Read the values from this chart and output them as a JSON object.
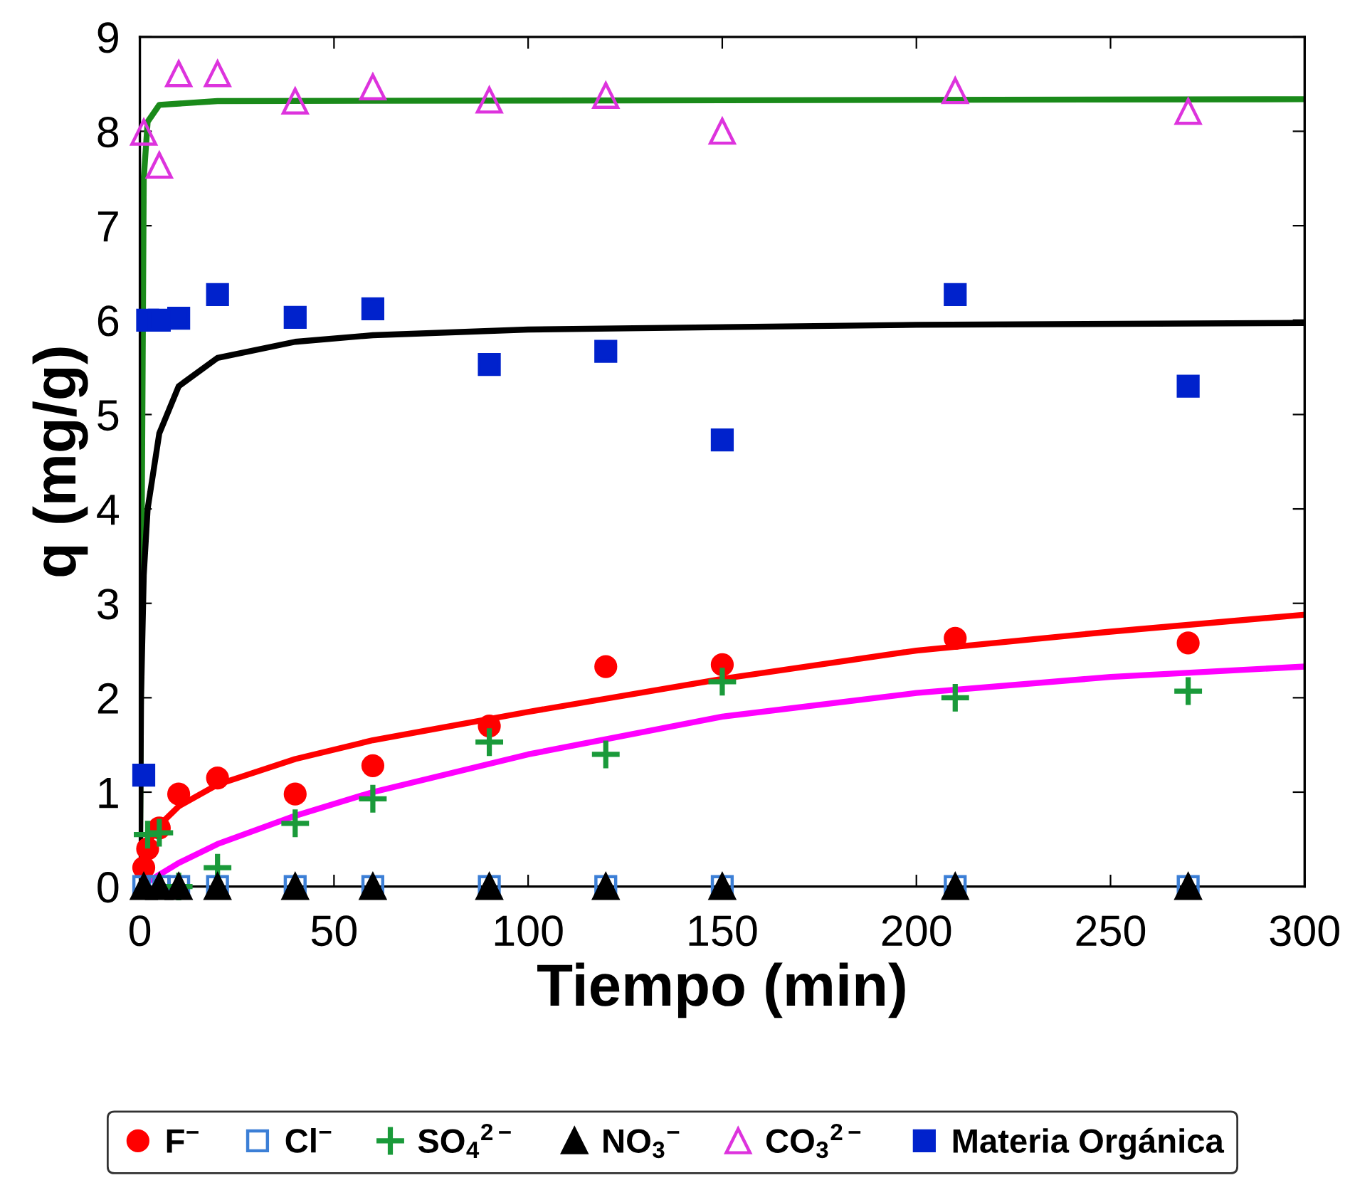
{
  "chart_data": {
    "type": "scatter",
    "xlabel": "Tiempo (min)",
    "ylabel": "q (mg/g)",
    "xlim": [
      0,
      300
    ],
    "ylim": [
      0,
      9
    ],
    "xticks": [
      0,
      50,
      100,
      150,
      200,
      250,
      300
    ],
    "yticks": [
      0,
      1,
      2,
      3,
      4,
      5,
      6,
      7,
      8,
      9
    ],
    "grid": false,
    "legend": "bottom",
    "series": [
      {
        "name": "F$^{−}$",
        "color": "#ff0000",
        "marker": "circle",
        "x": [
          1,
          2,
          5,
          10,
          20,
          40,
          60,
          90,
          120,
          150,
          210,
          270
        ],
        "values": [
          0.2,
          0.4,
          0.62,
          0.98,
          1.15,
          0.98,
          1.28,
          1.7,
          2.33,
          2.35,
          2.63,
          2.58
        ]
      },
      {
        "name": "Cl$^{−}$",
        "color": "#3c7fd6",
        "marker": "square_open",
        "x": [
          1,
          5,
          10,
          20,
          40,
          60,
          90,
          120,
          150,
          210,
          270
        ],
        "values": [
          0,
          0,
          0,
          0,
          0,
          0,
          0,
          0,
          0,
          0,
          0
        ]
      },
      {
        "name": "SO$_{4}$$^{2−}$",
        "color": "#1a9a3a",
        "marker": "cross",
        "x": [
          2,
          5,
          10,
          20,
          40,
          60,
          90,
          120,
          150,
          210,
          270
        ],
        "values": [
          0.55,
          0.57,
          0,
          0.2,
          0.67,
          0.93,
          1.53,
          1.4,
          2.17,
          2.0,
          2.07
        ]
      },
      {
        "name": "NO$_{3}$$^{−}$",
        "color": "#000000",
        "marker": "triangle",
        "x": [
          1,
          5,
          10,
          20,
          40,
          60,
          90,
          120,
          150,
          210,
          270
        ],
        "values": [
          0,
          0,
          0,
          0,
          0,
          0,
          0,
          0,
          0,
          0,
          0
        ]
      },
      {
        "name": "CO$_{3}$$^{2−}$",
        "color": "#dd33dd",
        "marker": "triangle_open",
        "x": [
          1,
          5,
          10,
          20,
          40,
          60,
          90,
          120,
          150,
          210,
          270
        ],
        "values": [
          7.99,
          7.64,
          8.61,
          8.61,
          8.32,
          8.47,
          8.33,
          8.38,
          8.0,
          8.43,
          8.21
        ]
      },
      {
        "name": "Materia Orgánica",
        "color": "#0022cc",
        "marker": "square",
        "x": [
          1,
          2,
          5,
          10,
          20,
          40,
          60,
          90,
          120,
          150,
          210,
          270
        ],
        "values": [
          1.18,
          6.0,
          6.0,
          6.02,
          6.27,
          6.03,
          6.12,
          5.53,
          5.67,
          4.73,
          6.27,
          5.3
        ]
      },
      {
        "type": "line",
        "color": "#1a8a1a",
        "x": [
          0,
          0.5,
          1,
          2,
          5,
          20,
          300
        ],
        "values": [
          0,
          4,
          7.5,
          8.1,
          8.28,
          8.32,
          8.34
        ]
      },
      {
        "type": "line",
        "color": "#000000",
        "x": [
          0,
          0.3,
          1,
          2,
          5,
          10,
          20,
          40,
          60,
          100,
          200,
          300
        ],
        "values": [
          0,
          2,
          3.3,
          4.0,
          4.8,
          5.3,
          5.6,
          5.77,
          5.84,
          5.9,
          5.95,
          5.97
        ]
      },
      {
        "type": "line",
        "color": "#ff0000",
        "x": [
          0,
          1,
          2,
          5,
          10,
          20,
          40,
          60,
          100,
          150,
          200,
          250,
          300
        ],
        "values": [
          0,
          0.3,
          0.45,
          0.65,
          0.85,
          1.08,
          1.35,
          1.55,
          1.85,
          2.2,
          2.5,
          2.7,
          2.88
        ]
      },
      {
        "type": "line",
        "color": "#ff00ff",
        "x": [
          0,
          10,
          20,
          40,
          60,
          100,
          150,
          200,
          250,
          300
        ],
        "values": [
          0,
          0.25,
          0.45,
          0.75,
          1.0,
          1.4,
          1.8,
          2.05,
          2.22,
          2.33
        ]
      }
    ]
  }
}
